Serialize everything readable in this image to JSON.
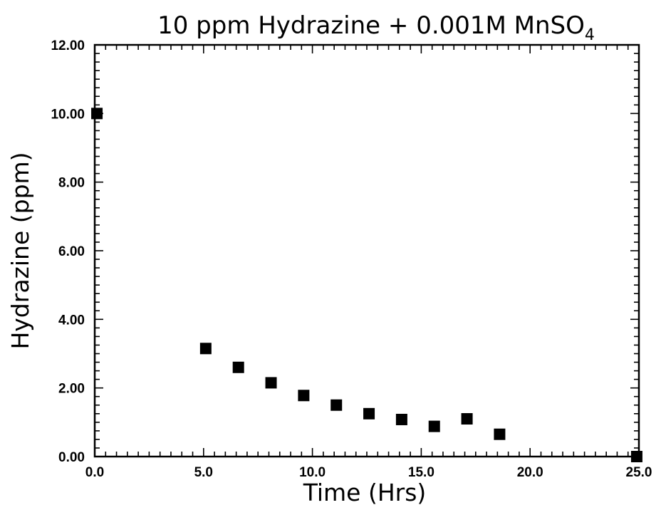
{
  "chart_data": {
    "type": "scatter",
    "title": "10  ppm  Hydrazine  +  0.001M  MnSO",
    "title_subscript": "4",
    "xlabel": "Time  (Hrs)",
    "ylabel": "Hydrazine  (ppm)",
    "xlim": [
      0,
      25
    ],
    "ylim": [
      0,
      12
    ],
    "x_ticks": [
      "0.0",
      "5.0",
      "10.0",
      "15.0",
      "20.0",
      "25.0"
    ],
    "y_ticks": [
      "0.00",
      "2.00",
      "4.00",
      "6.00",
      "8.00",
      "10.00",
      "12.00"
    ],
    "x_minor_step": 0.5,
    "y_minor_step": 0.25,
    "grid": false,
    "marker": "filled-square",
    "marker_color": "#000000",
    "points": [
      {
        "x": 0.1,
        "y": 10.0
      },
      {
        "x": 5.1,
        "y": 3.15
      },
      {
        "x": 6.6,
        "y": 2.6
      },
      {
        "x": 8.1,
        "y": 2.15
      },
      {
        "x": 9.6,
        "y": 1.78
      },
      {
        "x": 11.1,
        "y": 1.5
      },
      {
        "x": 12.6,
        "y": 1.25
      },
      {
        "x": 14.1,
        "y": 1.08
      },
      {
        "x": 15.6,
        "y": 0.88
      },
      {
        "x": 17.1,
        "y": 1.1
      },
      {
        "x": 18.6,
        "y": 0.65
      },
      {
        "x": 24.9,
        "y": 0.0
      }
    ]
  }
}
